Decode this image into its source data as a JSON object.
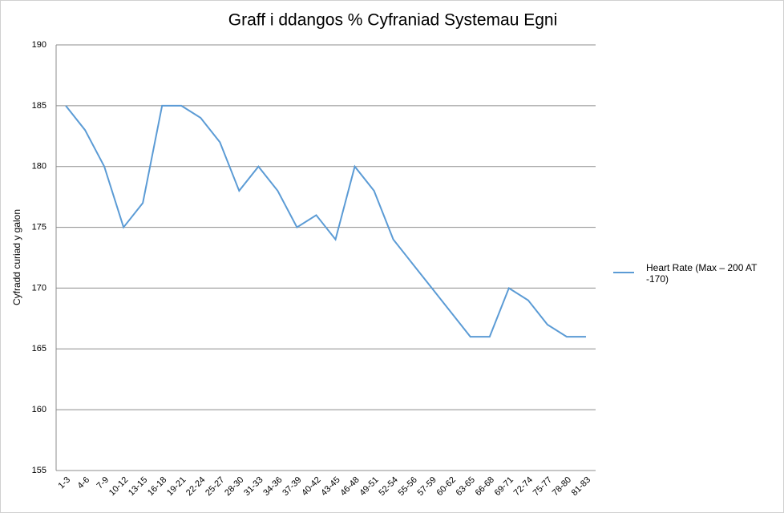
{
  "chart_data": {
    "type": "line",
    "title": "Graff i ddangos % Cyfraniad Systemau Egni",
    "y_label": "Cyfradd curiad y galon",
    "categories": [
      "1-3",
      "4-6",
      "7-9",
      "10-12",
      "13-15",
      "16-18",
      "19-21",
      "22-24",
      "25-27",
      "28-30",
      "31-33",
      "34-36",
      "37-39",
      "40-42",
      "43-45",
      "46-48",
      "49-51",
      "52-54",
      "55-56",
      "57-59",
      "60-62",
      "63-65",
      "66-68",
      "69-71",
      "72-74",
      "75-77",
      "78-80",
      "81-83"
    ],
    "series": [
      {
        "name": "Heart Rate (Max – 200 AT -170)",
        "color": "#5b9bd5",
        "values": [
          185,
          183,
          180,
          175,
          177,
          185,
          185,
          184,
          182,
          178,
          180,
          178,
          175,
          176,
          174,
          180,
          178,
          174,
          172,
          170,
          168,
          166,
          166,
          170,
          169,
          167,
          166,
          166
        ]
      }
    ],
    "ylim": [
      155,
      190
    ],
    "yticks": [
      155,
      160,
      165,
      170,
      175,
      180,
      185,
      190
    ],
    "grid": true,
    "legend": "right"
  }
}
